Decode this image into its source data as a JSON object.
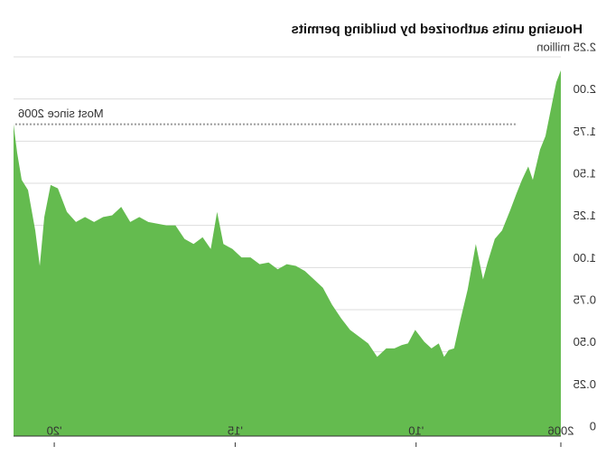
{
  "chart_data": {
    "type": "area",
    "title": "Housing units authorized by building permits",
    "color": "#64bb4f",
    "grid": true,
    "x": [
      2006.0,
      2006.125,
      2006.275,
      2006.425,
      2006.575,
      2006.775,
      2006.9,
      2007.075,
      2007.225,
      2007.4,
      2007.625,
      2007.825,
      2008.025,
      2008.15,
      2008.35,
      2008.575,
      2008.775,
      2008.95,
      2009.1,
      2009.225,
      2009.375,
      2009.575,
      2009.775,
      2010.025,
      2010.225,
      2010.4,
      2010.6,
      2010.825,
      2011.075,
      2011.325,
      2011.575,
      2011.825,
      2012.075,
      2012.325,
      2012.575,
      2012.825,
      2013.075,
      2013.325,
      2013.575,
      2013.825,
      2014.075,
      2014.325,
      2014.575,
      2014.825,
      2015.075,
      2015.325,
      2015.5,
      2015.675,
      2015.9,
      2016.15,
      2016.4,
      2016.65,
      2016.9,
      2017.15,
      2017.4,
      2017.65,
      2017.9,
      2018.15,
      2018.4,
      2018.65,
      2018.9,
      2019.15,
      2019.4,
      2019.65,
      2019.9,
      2020.1,
      2020.275,
      2020.4,
      2020.525,
      2020.725,
      2020.9,
      2021.025,
      2021.125
    ],
    "values": [
      2.17,
      2.1,
      1.94,
      1.78,
      1.7,
      1.52,
      1.6,
      1.52,
      1.44,
      1.34,
      1.22,
      1.17,
      1.03,
      0.93,
      1.14,
      0.87,
      0.69,
      0.52,
      0.51,
      0.47,
      0.55,
      0.52,
      0.56,
      0.63,
      0.55,
      0.54,
      0.52,
      0.52,
      0.47,
      0.55,
      0.59,
      0.63,
      0.7,
      0.78,
      0.88,
      0.93,
      0.98,
      1.01,
      1.02,
      0.99,
      1.03,
      1.02,
      1.06,
      1.06,
      1.11,
      1.14,
      1.33,
      1.11,
      1.18,
      1.14,
      1.17,
      1.25,
      1.25,
      1.26,
      1.27,
      1.3,
      1.27,
      1.36,
      1.31,
      1.3,
      1.27,
      1.3,
      1.27,
      1.33,
      1.47,
      1.49,
      1.3,
      1.01,
      1.22,
      1.46,
      1.52,
      1.68,
      1.85
    ],
    "xlim": [
      2006,
      2021.125
    ],
    "xticks": [
      {
        "value": 2006,
        "label": "2006"
      },
      {
        "value": 2010,
        "label": "'10"
      },
      {
        "value": 2015,
        "label": "'15"
      },
      {
        "value": 2020,
        "label": "'20"
      }
    ],
    "ylim": [
      0,
      2.25
    ],
    "yticks": [
      0,
      {
        "value": 0.25,
        "label": "0.25"
      },
      {
        "value": 0.5,
        "label": "0.50"
      },
      {
        "value": 0.75,
        "label": "0.75"
      },
      {
        "value": 1,
        "label": "1.00"
      },
      {
        "value": 1.25,
        "label": "1.25"
      },
      {
        "value": 1.5,
        "label": "1.50"
      },
      {
        "value": 1.75,
        "label": "1.75"
      },
      {
        "value": 2,
        "label": "2.00"
      },
      {
        "value": 2.25,
        "label": "2.25 million"
      }
    ],
    "annotation": {
      "text": "Most since 2006",
      "value": 1.85
    }
  }
}
